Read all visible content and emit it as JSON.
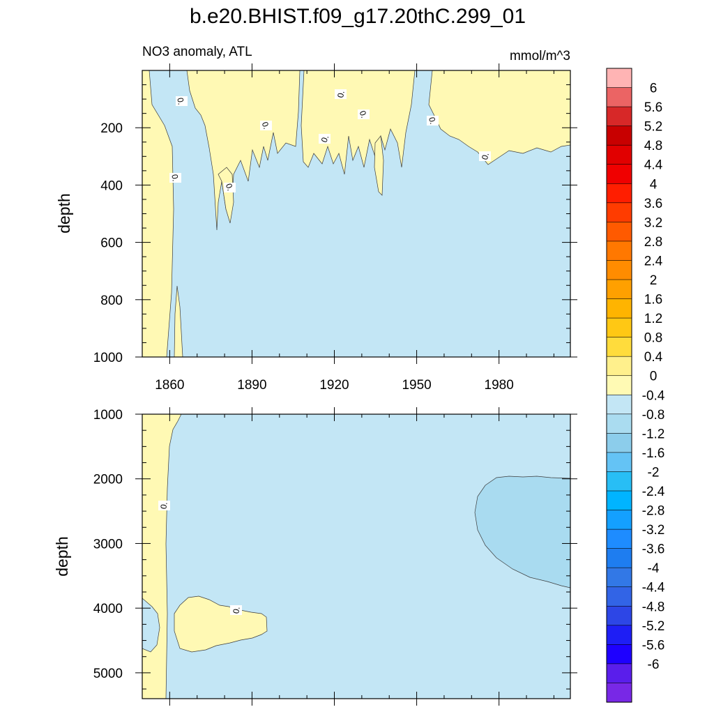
{
  "title": "b.e20.BHIST.f09_g17.20thC.299_01",
  "chart_data": [
    {
      "type": "contour",
      "panel": "upper",
      "variable": "NO3 anomaly, ATL",
      "units": "mmol/m^3",
      "xlabel": "",
      "ylabel": "depth",
      "xlim": [
        1850,
        2006
      ],
      "ylim": [
        1000,
        0
      ],
      "xticks": [
        1860,
        1890,
        1920,
        1950,
        1980
      ],
      "yticks": [
        200,
        400,
        600,
        800,
        1000
      ],
      "contour_labels": [
        "0.",
        "0.",
        "0.",
        "0.",
        "0.",
        "0.",
        "0.",
        "0.",
        "0."
      ],
      "background_level": "-0.4 to 0",
      "positive_regions_level": "0 to 0.4"
    },
    {
      "type": "contour",
      "panel": "lower",
      "xlabel": "",
      "ylabel": "depth",
      "xlim": [
        1850,
        2006
      ],
      "ylim": [
        5400,
        1000
      ],
      "xticks": [
        1860,
        1890,
        1920,
        1950,
        1980
      ],
      "yticks": [
        1000,
        2000,
        3000,
        4000,
        5000
      ],
      "contour_labels": [
        "0.",
        "0."
      ],
      "background_level": "-0.4 to 0",
      "positive_regions_level": "0 to 0.4",
      "negative_region_level": "-0.8 to -0.4"
    }
  ],
  "colorbar": {
    "labels": [
      "6",
      "5.6",
      "5.2",
      "4.8",
      "4.4",
      "4",
      "3.6",
      "3.2",
      "2.8",
      "2.4",
      "2",
      "1.6",
      "1.2",
      "0.8",
      "0.4",
      "0",
      "-0.4",
      "-0.8",
      "-1.2",
      "-1.6",
      "-2",
      "-2.4",
      "-2.8",
      "-3.2",
      "-3.6",
      "-4",
      "-4.4",
      "-4.8",
      "-5.2",
      "-5.6",
      "-6"
    ],
    "colors": [
      "#FFB4B4",
      "#EB6464",
      "#D72828",
      "#C80000",
      "#E10000",
      "#F00000",
      "#FF1E00",
      "#FF3C00",
      "#FF5A00",
      "#FF7800",
      "#FF8C00",
      "#FFA000",
      "#FFB400",
      "#FFC814",
      "#FFDC3C",
      "#FFF08C",
      "#FFFAB4",
      "#C3E6F5",
      "#AADCF0",
      "#8CCDEB",
      "#64C3F5",
      "#28BEF5",
      "#00B4FF",
      "#14A0FF",
      "#1E8CFF",
      "#1E7DF0",
      "#3278E6",
      "#3264E6",
      "#2D46E6",
      "#1E1EF5",
      "#1E00FF",
      "#5A1EEB",
      "#7828E6"
    ]
  }
}
